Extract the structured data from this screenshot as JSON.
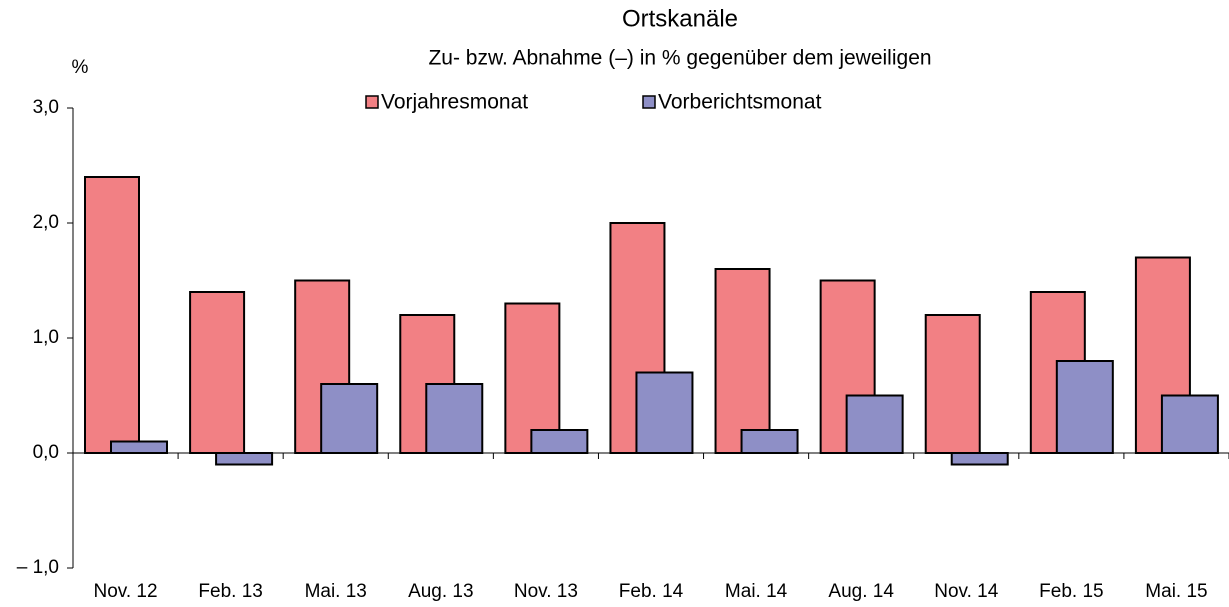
{
  "chart_data": {
    "type": "bar",
    "title": "Ortskanäle",
    "subtitle": "Zu- bzw. Abnahme (–) in % gegenüber dem jeweiligen",
    "y_label": "%",
    "categories": [
      "Nov. 12",
      "Feb. 13",
      "Mai. 13",
      "Aug. 13",
      "Nov. 13",
      "Feb. 14",
      "Mai. 14",
      "Aug. 14",
      "Nov. 14",
      "Feb. 15",
      "Mai. 15"
    ],
    "series": [
      {
        "name": "Vorjahresmonat",
        "color": "#f28084",
        "values": [
          2.4,
          1.4,
          1.5,
          1.2,
          1.3,
          2.0,
          1.6,
          1.5,
          1.2,
          1.4,
          1.7
        ]
      },
      {
        "name": "Vorberichtsmonat",
        "color": "#8e8fc6",
        "values": [
          0.1,
          -0.1,
          0.6,
          0.6,
          0.2,
          0.7,
          0.2,
          0.5,
          -0.1,
          0.8,
          0.5
        ]
      }
    ],
    "ylim": [
      -1,
      3
    ],
    "yticks": [
      {
        "value": -1,
        "label": "– 1,0"
      },
      {
        "value": 0,
        "label": "0,0"
      },
      {
        "value": 1,
        "label": "1,0"
      },
      {
        "value": 2,
        "label": "2,0"
      },
      {
        "value": 3,
        "label": "3,0"
      }
    ],
    "grid": false
  }
}
